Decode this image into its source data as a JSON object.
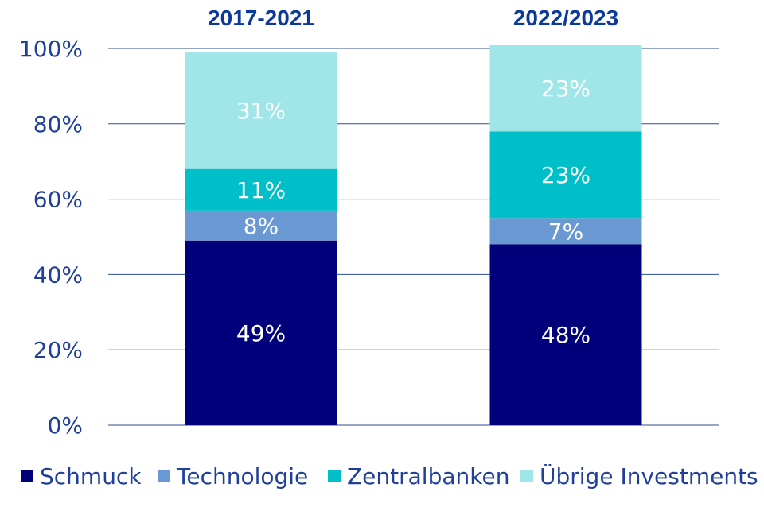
{
  "chart_data": {
    "type": "bar",
    "stacked": true,
    "categories": [
      "2017-2021",
      "2022/2023"
    ],
    "series": [
      {
        "name": "Schmuck",
        "values": [
          49,
          48
        ],
        "labels": [
          "49%",
          "48%"
        ],
        "color": "#00007a"
      },
      {
        "name": "Technologie",
        "values": [
          8,
          7
        ],
        "labels": [
          "8%",
          "7%"
        ],
        "color": "#6a98d2"
      },
      {
        "name": "Zentralbanken",
        "values": [
          11,
          23
        ],
        "labels": [
          "11%",
          "23%"
        ],
        "color": "#00bfc8"
      },
      {
        "name": "Übrige Investments",
        "values": [
          31,
          23
        ],
        "labels": [
          "31%",
          "23%"
        ],
        "color": "#a0e5e8"
      }
    ],
    "ylim": [
      0,
      100
    ],
    "yticks": [
      {
        "value": 0,
        "label": "0%"
      },
      {
        "value": 20,
        "label": "20%"
      },
      {
        "value": 40,
        "label": "40%"
      },
      {
        "value": 60,
        "label": "60%"
      },
      {
        "value": 80,
        "label": "80%"
      },
      {
        "value": 100,
        "label": "100%"
      }
    ],
    "grid": true,
    "category_labels_position": "top",
    "legend_position": "bottom",
    "colors": {
      "axis_text": "#1f3f9a",
      "category_text": "#0b3a9b",
      "grid": "#2d4d8f"
    }
  }
}
